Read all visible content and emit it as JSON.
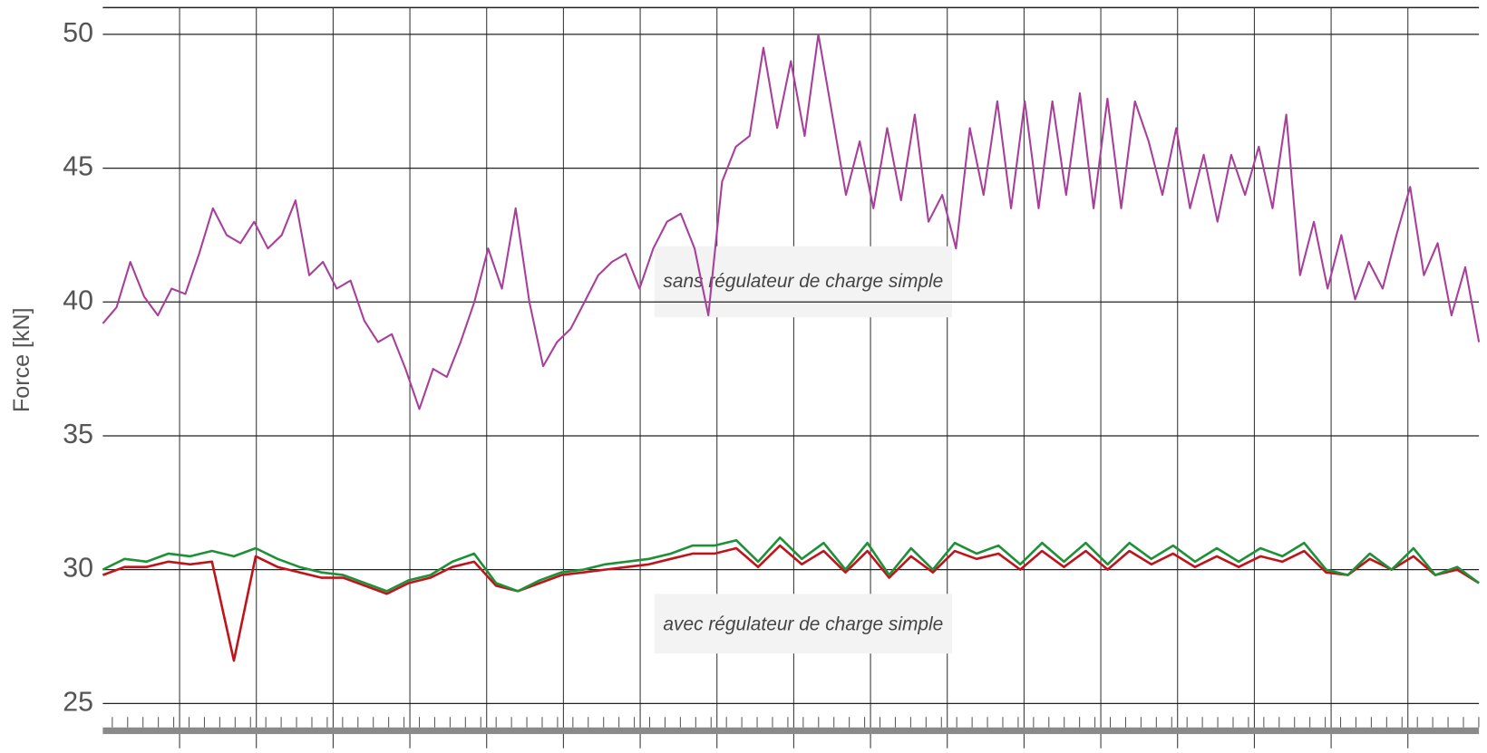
{
  "chart_data": {
    "type": "line",
    "y_label": "Force [kN]",
    "annotations": [
      "sans régulateur de charge simple",
      "avec régulateur de charge simple"
    ],
    "ylim": [
      24,
      51
    ],
    "yticks": [
      25,
      30,
      35,
      40,
      45,
      50
    ],
    "grid": true,
    "series": [
      {
        "name": "sans régulateur de charge simple",
        "color": "#a8409a",
        "values": [
          39.2,
          39.8,
          41.5,
          40.2,
          39.5,
          40.5,
          40.3,
          41.8,
          43.5,
          42.5,
          42.2,
          43.0,
          42.0,
          42.5,
          43.8,
          41.0,
          41.5,
          40.5,
          40.8,
          39.3,
          38.5,
          38.8,
          37.5,
          36.0,
          37.5,
          37.2,
          38.5,
          40.0,
          42.0,
          40.5,
          43.5,
          40.0,
          37.6,
          38.5,
          39.0,
          40.0,
          41.0,
          41.5,
          41.8,
          40.5,
          42.0,
          43.0,
          43.3,
          42.0,
          39.5,
          44.5,
          45.8,
          46.2,
          49.5,
          46.5,
          49.0,
          46.2,
          50.0,
          47.0,
          44.0,
          46.0,
          43.5,
          46.5,
          43.8,
          47.0,
          43.0,
          44.0,
          42.0,
          46.5,
          44.0,
          47.5,
          43.5,
          47.5,
          43.5,
          47.5,
          44.0,
          47.8,
          43.5,
          47.6,
          43.5,
          47.5,
          46.0,
          44.0,
          46.5,
          43.5,
          45.5,
          43.0,
          45.5,
          44.0,
          45.8,
          43.5,
          47.0,
          41.0,
          43.0,
          40.5,
          42.5,
          40.1,
          41.5,
          40.5,
          42.5,
          44.3,
          41.0,
          42.2,
          39.5,
          41.3,
          38.5
        ]
      },
      {
        "name": "avec régulateur de charge simple (rouge)",
        "color": "#c0141c",
        "values": [
          29.8,
          30.1,
          30.1,
          30.3,
          30.2,
          30.3,
          26.6,
          30.5,
          30.1,
          29.9,
          29.7,
          29.7,
          29.4,
          29.1,
          29.5,
          29.7,
          30.1,
          30.3,
          29.4,
          29.2,
          29.5,
          29.8,
          29.9,
          30.0,
          30.1,
          30.2,
          30.4,
          30.6,
          30.6,
          30.8,
          30.1,
          30.9,
          30.2,
          30.7,
          29.9,
          30.7,
          29.7,
          30.5,
          29.9,
          30.7,
          30.4,
          30.6,
          30.0,
          30.7,
          30.1,
          30.7,
          30.0,
          30.7,
          30.2,
          30.6,
          30.1,
          30.5,
          30.1,
          30.5,
          30.3,
          30.7,
          29.9,
          29.8,
          30.4,
          30.0,
          30.5,
          29.8,
          30.0,
          29.5
        ]
      },
      {
        "name": "avec régulateur de charge simple (vert)",
        "color": "#1e9138",
        "values": [
          30.0,
          30.4,
          30.3,
          30.6,
          30.5,
          30.7,
          30.5,
          30.8,
          30.4,
          30.1,
          29.9,
          29.8,
          29.5,
          29.2,
          29.6,
          29.8,
          30.3,
          30.6,
          29.5,
          29.2,
          29.6,
          29.9,
          30.0,
          30.2,
          30.3,
          30.4,
          30.6,
          30.9,
          30.9,
          31.1,
          30.3,
          31.2,
          30.4,
          31.0,
          30.0,
          31.0,
          29.8,
          30.8,
          30.0,
          31.0,
          30.6,
          30.9,
          30.2,
          31.0,
          30.3,
          31.0,
          30.2,
          31.0,
          30.4,
          30.9,
          30.3,
          30.8,
          30.3,
          30.8,
          30.5,
          31.0,
          30.0,
          29.8,
          30.6,
          30.0,
          30.8,
          29.8,
          30.1,
          29.5
        ]
      }
    ]
  }
}
